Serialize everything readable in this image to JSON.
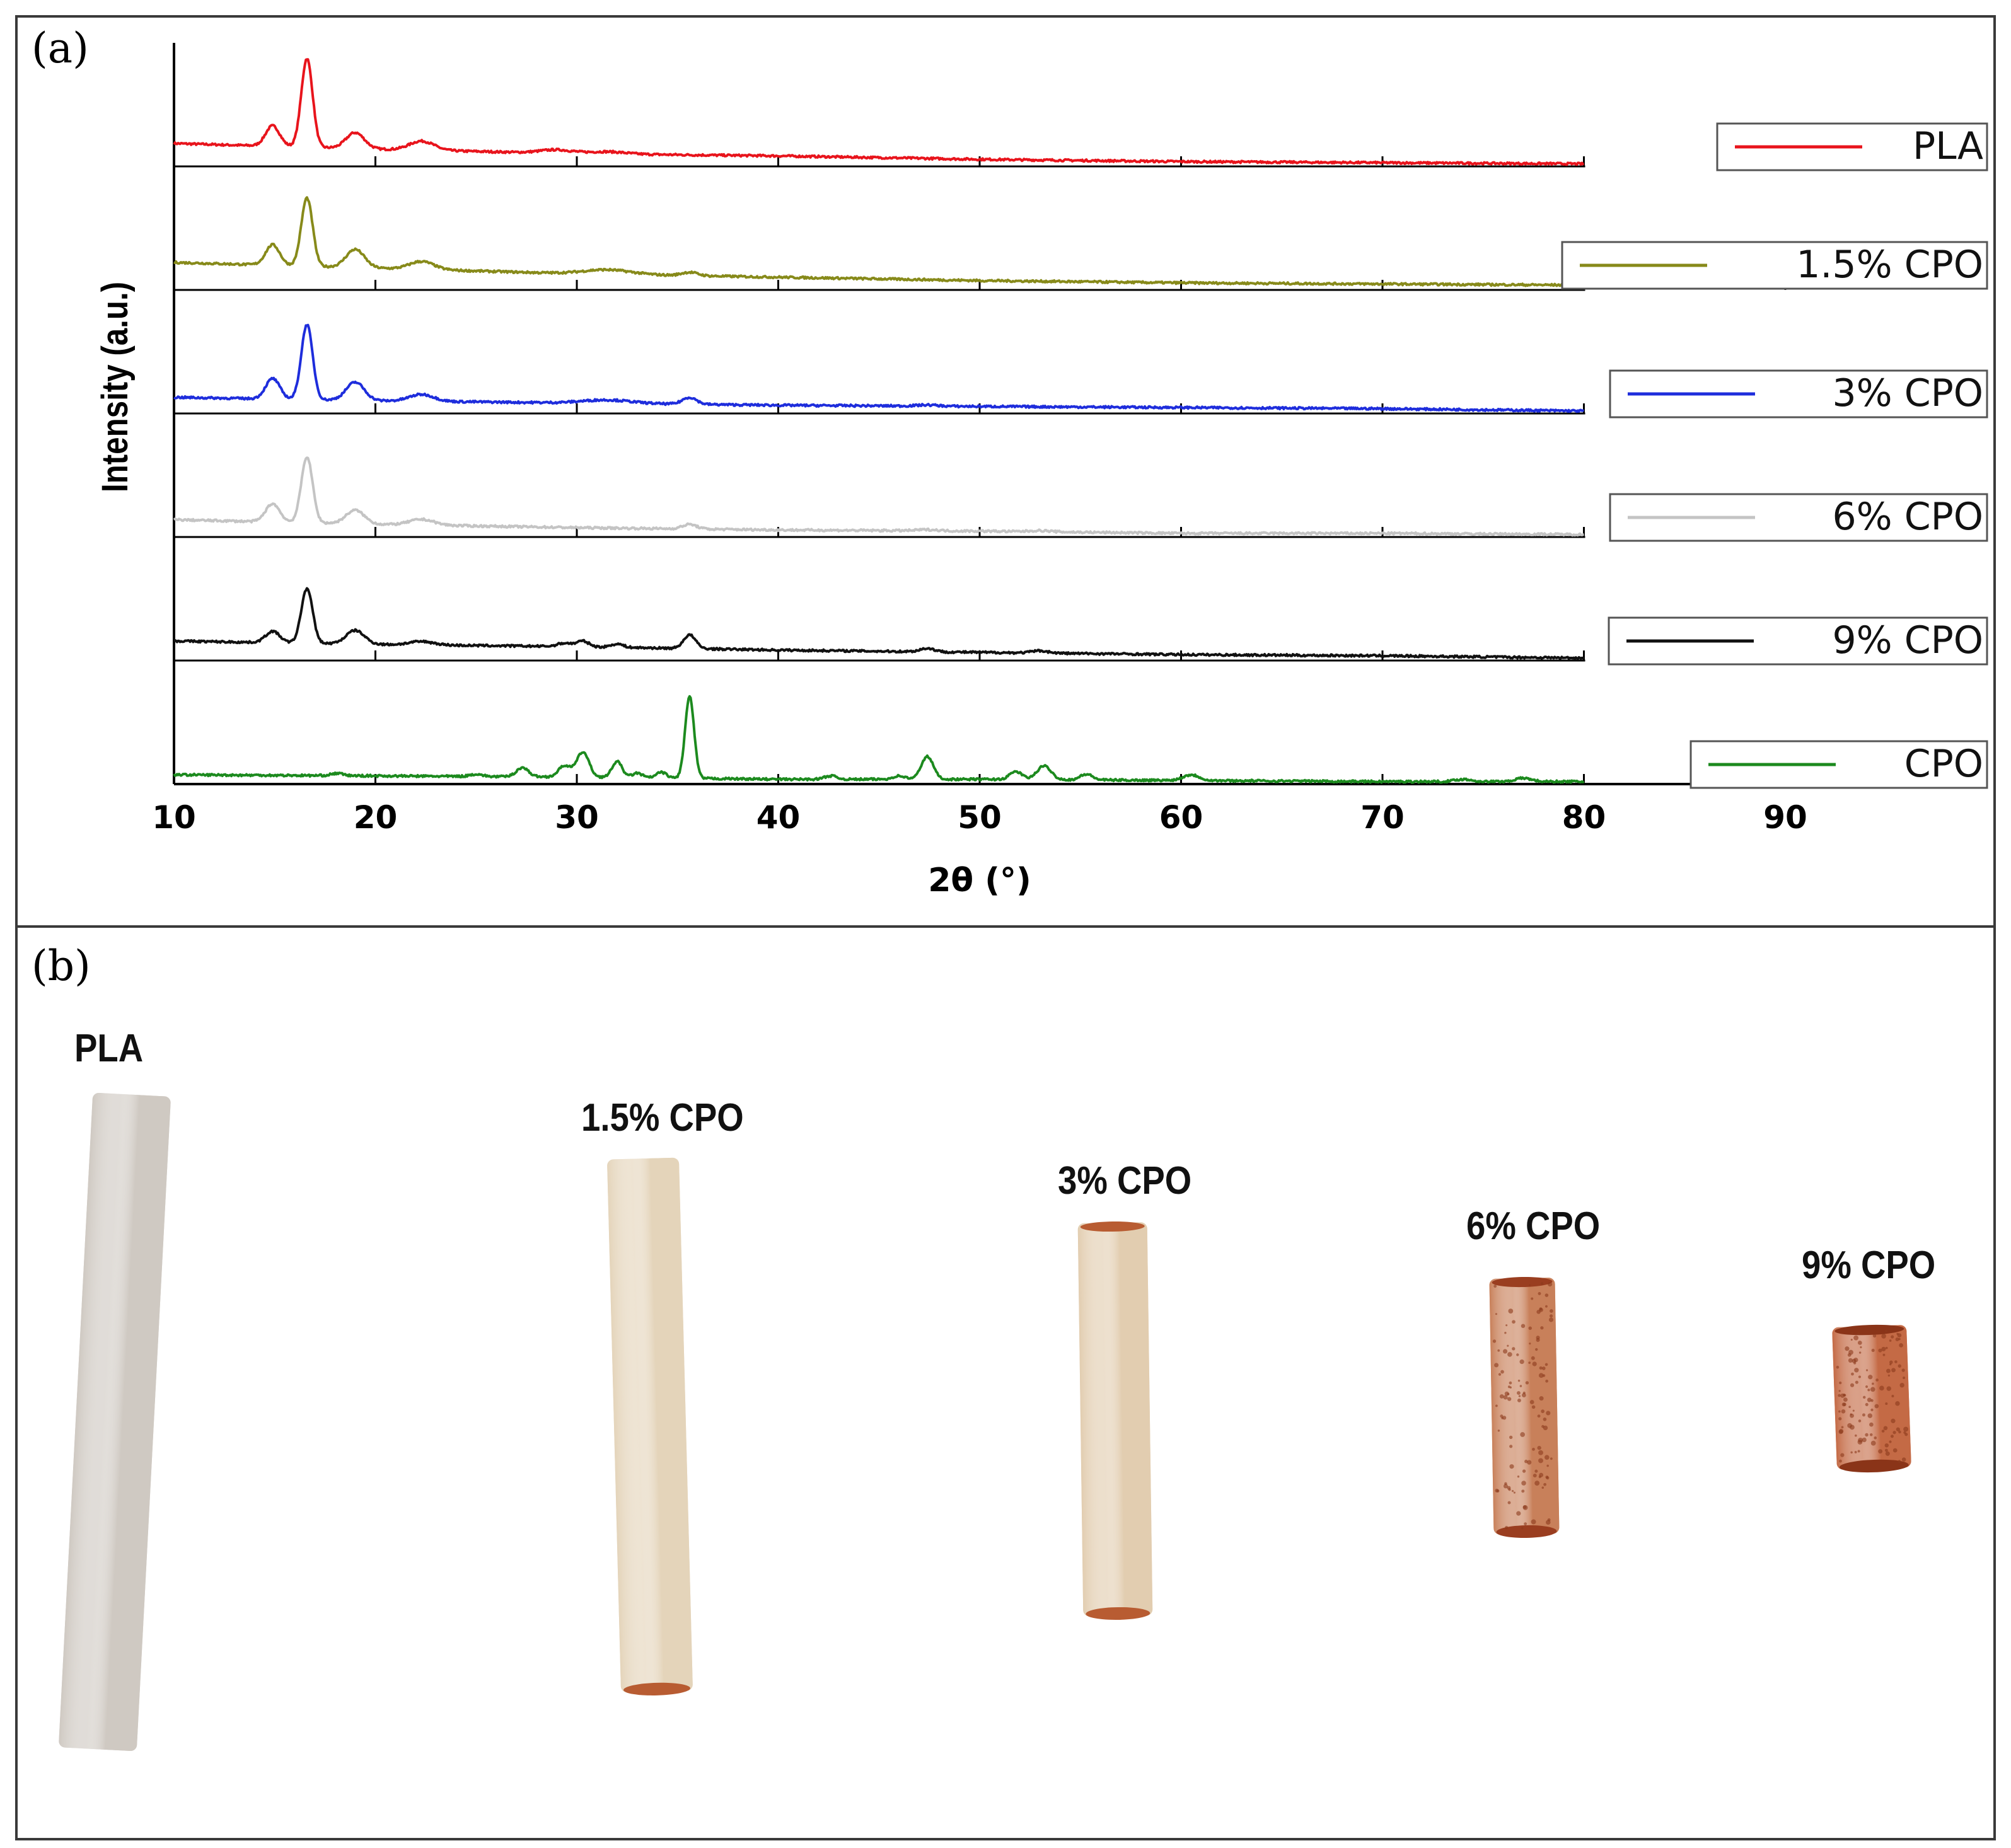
{
  "panel_a": {
    "letter": "(a)"
  },
  "panel_b": {
    "letter": "(b)",
    "samples": [
      {
        "label": "PLA",
        "color": "#cfc9c2"
      },
      {
        "label": "1.5% CPO",
        "color": "#e4d4ba"
      },
      {
        "label": "3% CPO",
        "color": "#e2cdb0"
      },
      {
        "label": "6% CPO",
        "color": "#c8805a"
      },
      {
        "label": "9% CPO",
        "color": "#c46a45"
      }
    ]
  },
  "chart_data": {
    "type": "line",
    "title": "",
    "xlabel": "2θ (°)",
    "ylabel": "Intensity (a.u.)",
    "xlim": [
      10,
      90
    ],
    "x_ticks": [
      10,
      20,
      30,
      40,
      50,
      60,
      70,
      80,
      90
    ],
    "stacked": true,
    "series": [
      {
        "name": "PLA",
        "color": "#e8141c",
        "baseline": [
          [
            10,
            0.18
          ],
          [
            20,
            0.13
          ],
          [
            30,
            0.09
          ],
          [
            40,
            0.07
          ],
          [
            50,
            0.04
          ],
          [
            60,
            0.02
          ],
          [
            70,
            0.01
          ],
          [
            80,
            0.0
          ]
        ],
        "peaks": [
          [
            14.9,
            0.18,
            0.35
          ],
          [
            16.6,
            0.78,
            0.28
          ],
          [
            19.0,
            0.14,
            0.45
          ],
          [
            22.3,
            0.08,
            0.6
          ],
          [
            29.0,
            0.03,
            0.8
          ],
          [
            31.5,
            0.02,
            0.9
          ]
        ]
      },
      {
        "name": "1.5% CPO",
        "color": "#878a1a",
        "baseline": [
          [
            10,
            0.22
          ],
          [
            20,
            0.17
          ],
          [
            30,
            0.12
          ],
          [
            40,
            0.09
          ],
          [
            50,
            0.06
          ],
          [
            60,
            0.04
          ],
          [
            70,
            0.03
          ],
          [
            80,
            0.02
          ]
        ],
        "peaks": [
          [
            14.9,
            0.18,
            0.35
          ],
          [
            16.6,
            0.6,
            0.28
          ],
          [
            19.0,
            0.16,
            0.45
          ],
          [
            22.3,
            0.07,
            0.6
          ],
          [
            31.5,
            0.04,
            1.2
          ],
          [
            35.6,
            0.03,
            0.4
          ]
        ]
      },
      {
        "name": "3% CPO",
        "color": "#1e2ddc",
        "baseline": [
          [
            10,
            0.12
          ],
          [
            20,
            0.09
          ],
          [
            30,
            0.07
          ],
          [
            40,
            0.05
          ],
          [
            50,
            0.04
          ],
          [
            60,
            0.03
          ],
          [
            70,
            0.02
          ],
          [
            80,
            0.0
          ]
        ],
        "peaks": [
          [
            14.9,
            0.18,
            0.35
          ],
          [
            16.6,
            0.66,
            0.28
          ],
          [
            19.0,
            0.16,
            0.45
          ],
          [
            22.3,
            0.06,
            0.6
          ],
          [
            31.5,
            0.03,
            1.2
          ],
          [
            35.6,
            0.06,
            0.35
          ],
          [
            47.4,
            0.01,
            0.5
          ]
        ]
      },
      {
        "name": "6% CPO",
        "color": "#c4c4c4",
        "baseline": [
          [
            10,
            0.13
          ],
          [
            20,
            0.09
          ],
          [
            30,
            0.06
          ],
          [
            40,
            0.04
          ],
          [
            50,
            0.03
          ],
          [
            60,
            0.01
          ],
          [
            70,
            0.01
          ],
          [
            80,
            0.0
          ]
        ],
        "peaks": [
          [
            14.9,
            0.16,
            0.35
          ],
          [
            16.6,
            0.58,
            0.28
          ],
          [
            19.0,
            0.12,
            0.45
          ],
          [
            22.3,
            0.05,
            0.6
          ],
          [
            35.6,
            0.04,
            0.35
          ],
          [
            47.4,
            0.01,
            0.5
          ],
          [
            53.0,
            0.01,
            0.5
          ]
        ]
      },
      {
        "name": "9% CPO",
        "color": "#111111",
        "baseline": [
          [
            10,
            0.15
          ],
          [
            20,
            0.12
          ],
          [
            30,
            0.1
          ],
          [
            40,
            0.07
          ],
          [
            50,
            0.05
          ],
          [
            60,
            0.03
          ],
          [
            70,
            0.02
          ],
          [
            80,
            0.0
          ]
        ],
        "peaks": [
          [
            14.9,
            0.1,
            0.35
          ],
          [
            16.6,
            0.48,
            0.28
          ],
          [
            19.0,
            0.12,
            0.45
          ],
          [
            22.3,
            0.03,
            0.6
          ],
          [
            29.4,
            0.03,
            0.35
          ],
          [
            30.3,
            0.05,
            0.3
          ],
          [
            32.0,
            0.03,
            0.3
          ],
          [
            35.6,
            0.12,
            0.3
          ],
          [
            47.4,
            0.03,
            0.35
          ],
          [
            53.0,
            0.02,
            0.4
          ]
        ]
      },
      {
        "name": "CPO",
        "color": "#1c8a1e",
        "baseline": [
          [
            10,
            0.06
          ],
          [
            20,
            0.05
          ],
          [
            30,
            0.04
          ],
          [
            40,
            0.02
          ],
          [
            50,
            0.02
          ],
          [
            60,
            0.01
          ],
          [
            70,
            0.0
          ],
          [
            80,
            0.0
          ]
        ],
        "peaks": [
          [
            18.1,
            0.02,
            0.3
          ],
          [
            25.0,
            0.02,
            0.3
          ],
          [
            27.3,
            0.08,
            0.3
          ],
          [
            29.4,
            0.1,
            0.3
          ],
          [
            30.3,
            0.22,
            0.3
          ],
          [
            32.0,
            0.14,
            0.25
          ],
          [
            33.0,
            0.04,
            0.25
          ],
          [
            34.2,
            0.05,
            0.25
          ],
          [
            35.6,
            0.72,
            0.22
          ],
          [
            42.6,
            0.03,
            0.3
          ],
          [
            46.0,
            0.03,
            0.3
          ],
          [
            47.4,
            0.2,
            0.3
          ],
          [
            51.8,
            0.07,
            0.3
          ],
          [
            53.2,
            0.12,
            0.35
          ],
          [
            55.3,
            0.05,
            0.3
          ],
          [
            60.5,
            0.05,
            0.4
          ],
          [
            74.0,
            0.02,
            0.4
          ],
          [
            77.0,
            0.03,
            0.4
          ]
        ]
      }
    ]
  }
}
